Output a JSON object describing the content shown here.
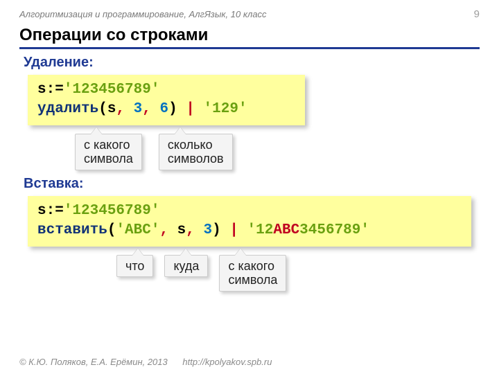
{
  "header": {
    "course": "Алгоритмизация и программирование, АлгЯзык, 10 класс",
    "page": "9"
  },
  "title": "Операции со строками",
  "section1": {
    "label": "Удаление:",
    "code": {
      "assign_lhs": "s:=",
      "assign_str": "'123456789'",
      "func": "удалить",
      "open": "(",
      "arg1": "s",
      "comma1": ",",
      "arg2": "3",
      "comma2": ",",
      "arg3": "6",
      "close": ")",
      "bar": "|",
      "result": "'129'"
    },
    "callouts": {
      "from": "с какого\nсимвола",
      "count": "сколько\nсимволов"
    }
  },
  "section2": {
    "label": "Вставка:",
    "code": {
      "assign_lhs": "s:=",
      "assign_str": "'123456789'",
      "func": "вставить",
      "open": "(",
      "arg1": "'ABC'",
      "comma1": ",",
      "arg2": "s",
      "comma2": ",",
      "arg3": "3",
      "close": ")",
      "bar": "|",
      "result_pre": "'12",
      "result_ins": "ABC",
      "result_post": "3456789'"
    },
    "callouts": {
      "what": "что",
      "where": "куда",
      "from": "с какого\nсимвола"
    }
  },
  "footer": {
    "copyright": "© К.Ю. Поляков, Е.А. Ерёмин, 2013",
    "url": "http://kpolyakov.spb.ru"
  },
  "colors": {
    "accent": "#1f3a93",
    "code_bg": "#ffff9e",
    "keyword": "#113377",
    "number": "#0070c0",
    "string": "#6aa010",
    "operator": "#c00020",
    "callout_bg": "#f4f4f4"
  }
}
